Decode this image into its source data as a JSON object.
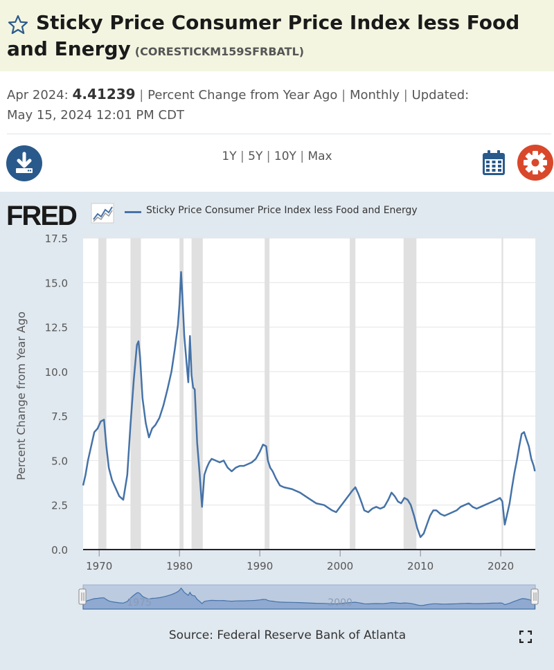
{
  "header": {
    "title": "Sticky Price Consumer Price Index less Food and Energy",
    "series_id": "(CORESTICKM159SFRBATL)"
  },
  "meta": {
    "date_label": "Apr 2024:",
    "value": "4.41239",
    "units": "Percent Change from Year Ago",
    "frequency": "Monthly",
    "updated_label": "Updated:",
    "updated": "May 15, 2024 12:01 PM CDT",
    "separator": "|"
  },
  "toolbar": {
    "ranges": [
      "1Y",
      "5Y",
      "10Y",
      "Max"
    ],
    "download_icon": "download-icon",
    "calendar_icon": "calendar-icon",
    "settings_icon": "gear-icon"
  },
  "colors": {
    "line": "#4572a7",
    "band": "#f3f5e1",
    "plot_bg": "#e1e9f0",
    "recession": "#e0e0e0",
    "download": "#2a5a8c",
    "settings": "#d9482b"
  },
  "brand": {
    "logo": "FRED"
  },
  "source": "Source: Federal Reserve Bank of Atlanta",
  "chart_data": {
    "type": "line",
    "title": "",
    "legend": [
      "Sticky Price Consumer Price Index less Food and Energy"
    ],
    "xlabel": "",
    "ylabel": "Percent Change from Year Ago",
    "ylim": [
      0.0,
      17.5
    ],
    "xlim": [
      1968.0,
      2024.3
    ],
    "y_ticks": [
      "0.0",
      "2.5",
      "5.0",
      "7.5",
      "10.0",
      "12.5",
      "15.0",
      "17.5"
    ],
    "x_ticks": [
      "1970",
      "1980",
      "1990",
      "2000",
      "2010",
      "2020"
    ],
    "navigator_labels": [
      "1975",
      "2000"
    ],
    "recessions": [
      [
        1969.9,
        1970.9
      ],
      [
        1973.9,
        1975.2
      ],
      [
        1980.0,
        1980.5
      ],
      [
        1981.5,
        1982.9
      ],
      [
        1990.6,
        1991.2
      ],
      [
        2001.2,
        2001.9
      ],
      [
        2007.9,
        2009.5
      ],
      [
        2020.1,
        2020.3
      ]
    ],
    "series": [
      {
        "name": "Sticky Price Consumer Price Index less Food and Energy",
        "x": [
          1968.0,
          1968.3,
          1968.6,
          1969.0,
          1969.4,
          1969.8,
          1970.2,
          1970.6,
          1970.9,
          1971.2,
          1971.6,
          1972.0,
          1972.5,
          1973.0,
          1973.5,
          1973.9,
          1974.3,
          1974.7,
          1974.9,
          1975.1,
          1975.4,
          1975.8,
          1976.2,
          1976.6,
          1977.0,
          1977.5,
          1978.0,
          1978.5,
          1979.0,
          1979.4,
          1979.8,
          1980.0,
          1980.2,
          1980.4,
          1980.6,
          1980.9,
          1981.1,
          1981.3,
          1981.5,
          1981.7,
          1981.9,
          1982.2,
          1982.5,
          1982.8,
          1983.1,
          1983.4,
          1983.7,
          1984.0,
          1984.5,
          1985.0,
          1985.5,
          1986.0,
          1986.5,
          1987.0,
          1987.5,
          1988.0,
          1988.5,
          1989.0,
          1989.5,
          1990.0,
          1990.4,
          1990.8,
          1991.0,
          1991.3,
          1991.6,
          1992.0,
          1992.5,
          1993.0,
          1994.0,
          1995.0,
          1996.0,
          1997.0,
          1998.0,
          1999.0,
          1999.5,
          2000.0,
          2000.5,
          2001.0,
          2001.5,
          2001.9,
          2002.3,
          2002.7,
          2003.0,
          2003.5,
          2004.0,
          2004.5,
          2005.0,
          2005.5,
          2006.0,
          2006.4,
          2006.8,
          2007.2,
          2007.6,
          2008.0,
          2008.4,
          2008.8,
          2009.2,
          2009.6,
          2010.0,
          2010.4,
          2010.8,
          2011.2,
          2011.6,
          2012.0,
          2012.5,
          2013.0,
          2013.5,
          2014.0,
          2014.5,
          2015.0,
          2015.5,
          2016.0,
          2016.5,
          2017.0,
          2017.5,
          2018.0,
          2018.5,
          2019.0,
          2019.5,
          2019.9,
          2020.2,
          2020.5,
          2020.8,
          2021.1,
          2021.4,
          2021.7,
          2022.0,
          2022.3,
          2022.6,
          2022.9,
          2023.2,
          2023.5,
          2023.8,
          2024.1,
          2024.25
        ],
        "values": [
          3.6,
          4.2,
          5.0,
          5.8,
          6.6,
          6.8,
          7.2,
          7.3,
          5.8,
          4.6,
          3.9,
          3.5,
          3.0,
          2.8,
          4.2,
          7.0,
          9.5,
          11.5,
          11.7,
          10.8,
          8.5,
          7.1,
          6.3,
          6.8,
          7.0,
          7.4,
          8.1,
          9.0,
          10.0,
          11.2,
          12.6,
          13.8,
          15.6,
          13.9,
          12.0,
          10.4,
          9.4,
          12.0,
          9.8,
          9.1,
          9.0,
          6.0,
          4.3,
          2.4,
          4.2,
          4.6,
          4.9,
          5.1,
          5.0,
          4.9,
          5.0,
          4.6,
          4.4,
          4.6,
          4.7,
          4.7,
          4.8,
          4.9,
          5.1,
          5.5,
          5.9,
          5.8,
          5.0,
          4.6,
          4.4,
          4.0,
          3.6,
          3.5,
          3.4,
          3.2,
          2.9,
          2.6,
          2.5,
          2.2,
          2.1,
          2.4,
          2.7,
          3.0,
          3.3,
          3.5,
          3.1,
          2.6,
          2.2,
          2.1,
          2.3,
          2.4,
          2.3,
          2.4,
          2.8,
          3.2,
          3.0,
          2.7,
          2.6,
          2.9,
          2.8,
          2.5,
          1.9,
          1.2,
          0.7,
          0.9,
          1.4,
          1.9,
          2.2,
          2.2,
          2.0,
          1.9,
          2.0,
          2.1,
          2.2,
          2.4,
          2.5,
          2.6,
          2.4,
          2.3,
          2.4,
          2.5,
          2.6,
          2.7,
          2.8,
          2.9,
          2.7,
          1.4,
          2.0,
          2.6,
          3.5,
          4.3,
          5.0,
          5.8,
          6.5,
          6.6,
          6.2,
          5.8,
          5.1,
          4.7,
          4.4
        ]
      }
    ]
  }
}
